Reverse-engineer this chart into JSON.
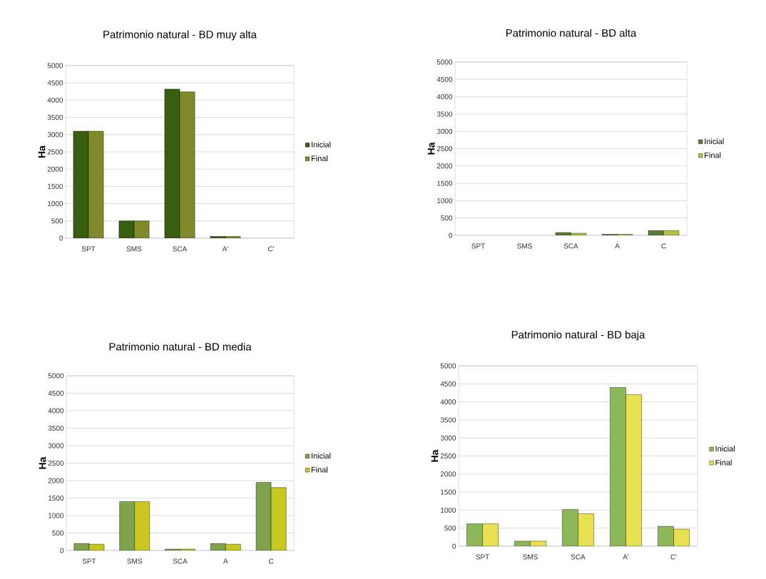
{
  "chart_data": [
    {
      "type": "bar",
      "title": "Patrimonio natural - BD muy alta",
      "ylabel": "Ha",
      "categories": [
        "SPT",
        "SMS",
        "SCA",
        "A'",
        "C'"
      ],
      "series": [
        {
          "name": "Inicial",
          "color": "#3a5e10",
          "values": [
            3100,
            500,
            4320,
            50,
            null
          ]
        },
        {
          "name": "Final",
          "color": "#808a2a",
          "values": [
            3100,
            500,
            4240,
            50,
            null
          ]
        }
      ],
      "ylim": [
        0,
        5000
      ],
      "yticks": [
        0,
        500,
        1000,
        1500,
        2000,
        2500,
        3000,
        3500,
        4000,
        4500,
        5000
      ],
      "grid": "y",
      "legend": "right"
    },
    {
      "type": "bar",
      "title": "Patrimonio natural - BD alta",
      "ylabel": "Ha",
      "categories": [
        "SPT",
        "SMS",
        "SCA",
        "A",
        "C"
      ],
      "series": [
        {
          "name": "Inicial",
          "color": "#5a7a35",
          "values": [
            null,
            null,
            80,
            30,
            140
          ]
        },
        {
          "name": "Final",
          "color": "#b5c23a",
          "values": [
            null,
            null,
            60,
            30,
            140
          ]
        }
      ],
      "ylim": [
        0,
        5000
      ],
      "yticks": [
        0,
        500,
        1000,
        1500,
        2000,
        2500,
        3000,
        3500,
        4000,
        4500,
        5000
      ],
      "grid": "y",
      "legend": "right"
    },
    {
      "type": "bar",
      "title": "Patrimonio natural - BD media",
      "ylabel": "Ha",
      "categories": [
        "SPT",
        "SMS",
        "SCA",
        "A",
        "C"
      ],
      "series": [
        {
          "name": "Inicial",
          "color": "#7fa34a",
          "values": [
            200,
            1400,
            40,
            200,
            1950
          ]
        },
        {
          "name": "Final",
          "color": "#c8c820",
          "values": [
            180,
            1400,
            40,
            180,
            1800
          ]
        }
      ],
      "ylim": [
        0,
        5000
      ],
      "yticks": [
        0,
        500,
        1000,
        1500,
        2000,
        2500,
        3000,
        3500,
        4000,
        4500,
        5000
      ],
      "grid": "y",
      "legend": "right"
    },
    {
      "type": "bar",
      "title": "Patrimonio natural - BD baja",
      "ylabel": "Ha",
      "categories": [
        "SPT",
        "SMS",
        "SCA",
        "A'",
        "C'"
      ],
      "series": [
        {
          "name": "Inicial",
          "color": "#8cb85a",
          "values": [
            620,
            140,
            1020,
            4400,
            550
          ]
        },
        {
          "name": "Final",
          "color": "#e8e050",
          "values": [
            620,
            140,
            900,
            4200,
            470
          ]
        }
      ],
      "ylim": [
        0,
        5000
      ],
      "yticks": [
        0,
        500,
        1000,
        1500,
        2000,
        2500,
        3000,
        3500,
        4000,
        4500,
        5000
      ],
      "grid": "y",
      "legend": "right"
    }
  ]
}
